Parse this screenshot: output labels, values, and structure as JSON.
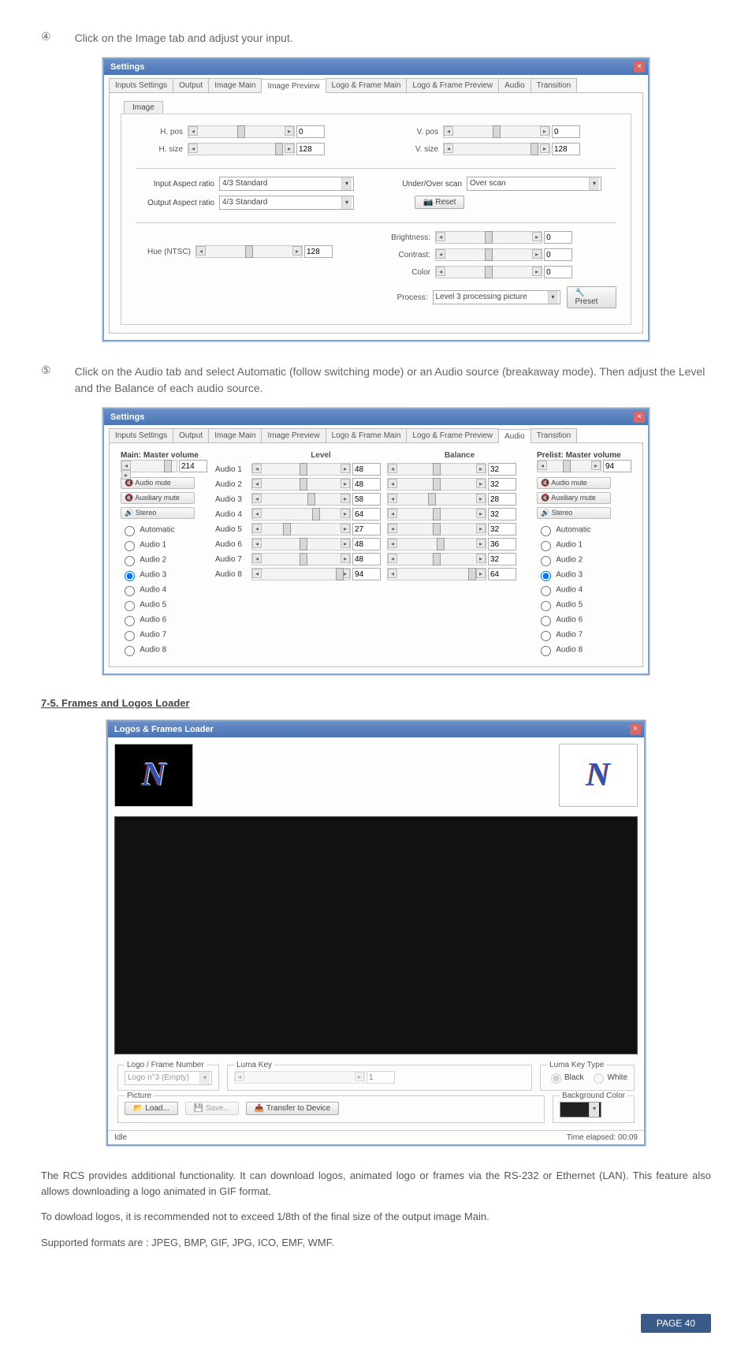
{
  "step4": {
    "num": "④",
    "text": "Click on the Image tab and adjust your input."
  },
  "step5": {
    "num": "⑤",
    "text": "Click on the Audio tab and select Automatic (follow switching mode) or an Audio source (breakaway mode). Then adjust the Level and the Balance of each audio source."
  },
  "win1": {
    "title": "Settings",
    "tabs": [
      "Inputs Settings",
      "Output",
      "Image Main",
      "Image Preview",
      "Logo & Frame Main",
      "Logo & Frame Preview",
      "Audio",
      "Transition"
    ],
    "activeTab": "Image Preview",
    "subTab": "Image",
    "hpos_label": "H. pos",
    "hpos_val": "0",
    "hsize_label": "H. size",
    "hsize_val": "128",
    "vpos_label": "V. pos",
    "vpos_val": "0",
    "vsize_label": "V. size",
    "vsize_val": "128",
    "iar_label": "Input Aspect ratio",
    "iar_val": "4/3  Standard",
    "oar_label": "Output Aspect ratio",
    "oar_val": "4/3  Standard",
    "scan_label": "Under/Over scan",
    "scan_val": "Over   scan",
    "reset_btn": "Reset",
    "hue_label": "Hue (NTSC)",
    "hue_val": "128",
    "bright_label": "Brightness:",
    "bright_val": "0",
    "contrast_label": "Contrast:",
    "contrast_val": "0",
    "color_label": "Color",
    "color_val": "0",
    "process_label": "Process:",
    "process_val": "Level 3 processing picture",
    "preset_btn": "Preset"
  },
  "win2": {
    "title": "Settings",
    "tabs": [
      "Inputs Settings",
      "Output",
      "Image Main",
      "Image Preview",
      "Logo & Frame Main",
      "Logo & Frame Preview",
      "Audio",
      "Transition"
    ],
    "activeTab": "Audio",
    "main_vol_label": "Main: Master volume",
    "main_vol": "214",
    "pre_vol_label": "Prelist: Master volume",
    "pre_vol": "94",
    "audio_mute": "Audio mute",
    "aux_mute": "Auxiliary mute",
    "stereo": "Stereo",
    "level_hdr": "Level",
    "balance_hdr": "Balance",
    "modes": [
      "Automatic",
      "Audio 1",
      "Audio 2",
      "Audio 3",
      "Audio 4",
      "Audio 5",
      "Audio 6",
      "Audio 7",
      "Audio 8"
    ],
    "main_selected": 3,
    "pre_selected": 3,
    "rows": [
      {
        "name": "Audio 1",
        "lvl": "48",
        "bal": "32"
      },
      {
        "name": "Audio 2",
        "lvl": "48",
        "bal": "32"
      },
      {
        "name": "Audio 3",
        "lvl": "58",
        "bal": "28"
      },
      {
        "name": "Audio 4",
        "lvl": "64",
        "bal": "32"
      },
      {
        "name": "Audio 5",
        "lvl": "27",
        "bal": "32"
      },
      {
        "name": "Audio 6",
        "lvl": "48",
        "bal": "36"
      },
      {
        "name": "Audio 7",
        "lvl": "48",
        "bal": "32"
      },
      {
        "name": "Audio 8",
        "lvl": "94",
        "bal": "64"
      }
    ]
  },
  "section": "7-5. Frames and Logos Loader",
  "win3": {
    "title": "Logos & Frames Loader",
    "lf_num": "Logo / Frame Number",
    "lf_val": "Logo n°3 (Empty)",
    "luma_key": "Luma Key",
    "luma_val": "1",
    "luma_type": "Luma Key Type",
    "black": "Black",
    "white": "White",
    "picture": "Picture",
    "load": "Load...",
    "save": "Save...",
    "transfer": "Transfer to Device",
    "bg": "Background Color",
    "status_l": "Idle",
    "status_r": "Time elapsed: 00:09"
  },
  "para1": "The RCS provides additional functionality. It can download logos, animated logo or frames via the RS-232 or Ethernet (LAN). This feature also allows downloading a logo animated in GIF format.",
  "para2": "To dowload logos, it is recommended not to exceed 1/8th of the final size of the output image Main.",
  "para3": "Supported formats are : JPEG, BMP, GIF, JPG, ICO, EMF, WMF.",
  "page_num": "PAGE 40"
}
